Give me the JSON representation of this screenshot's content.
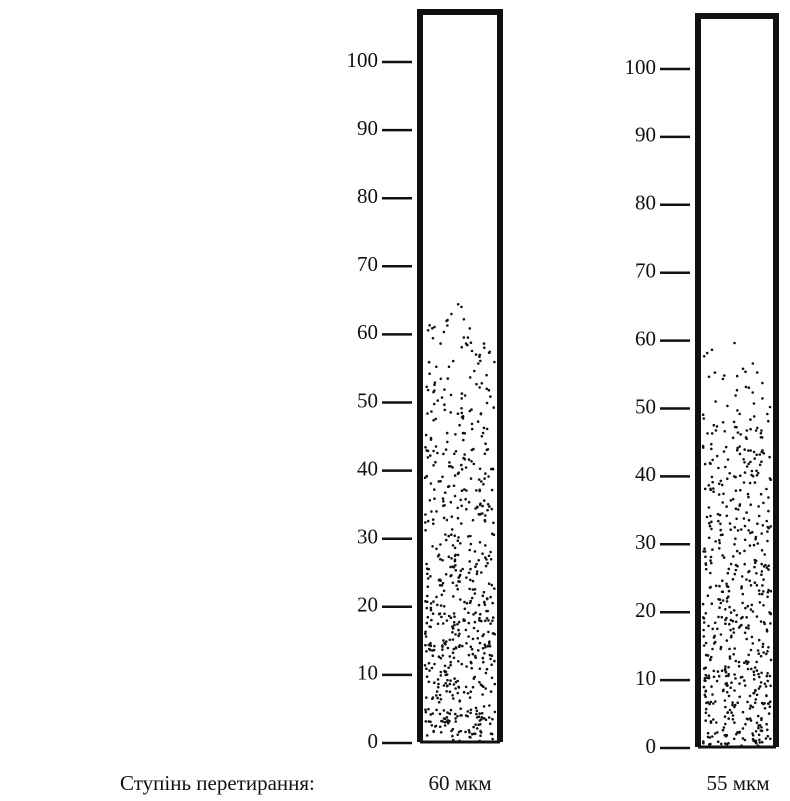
{
  "caption": "Ступінь перетирання:",
  "cylinders": [
    {
      "label": "60 мкм",
      "ticks": [
        0,
        10,
        20,
        30,
        40,
        50,
        60,
        70,
        80,
        90,
        100
      ],
      "sediment_top": 66
    },
    {
      "label": "55 мкм",
      "ticks": [
        0,
        10,
        20,
        30,
        40,
        50,
        60,
        70,
        80,
        90,
        100
      ],
      "sediment_top": 60
    }
  ]
}
